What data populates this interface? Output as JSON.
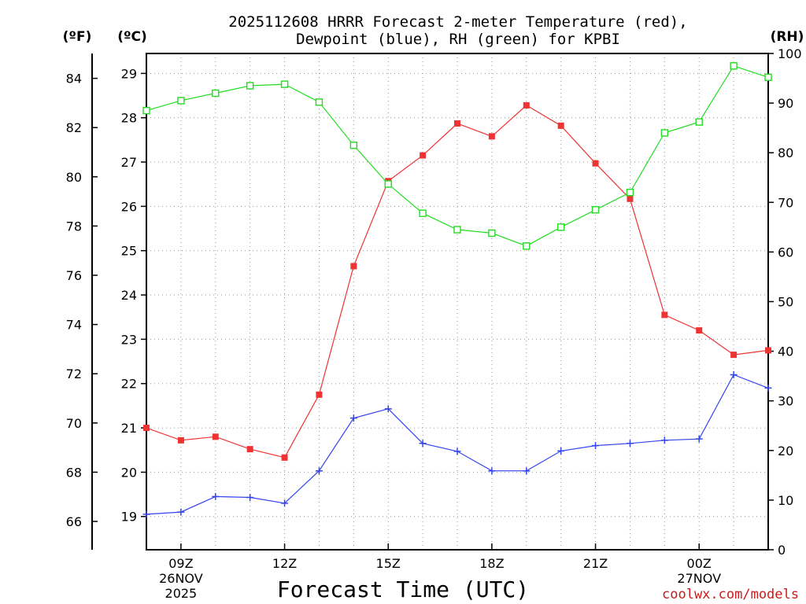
{
  "chart_data": {
    "type": "line",
    "title_line1": "2025112608 HRRR Forecast 2-meter Temperature (red),",
    "title_line2": "Dewpoint (blue), RH (green) for KPBI",
    "xlabel": "Forecast Time (UTC)",
    "credit": "coolwx.com/models",
    "left_outer_unit": "(ºF)",
    "left_inner_unit": "(ºC)",
    "right_unit": "(RH)",
    "celsius_axis": {
      "range": [
        18.25,
        29.45
      ],
      "ticks": [
        19,
        20,
        21,
        22,
        23,
        24,
        25,
        26,
        27,
        28,
        29
      ]
    },
    "fahrenheit_axis": {
      "ticks": [
        66,
        68,
        70,
        72,
        74,
        76,
        78,
        80,
        82,
        84
      ]
    },
    "rh_axis": {
      "range": [
        0,
        100
      ],
      "ticks": [
        0,
        10,
        20,
        30,
        40,
        50,
        60,
        70,
        80,
        90,
        100
      ]
    },
    "x_range": [
      8,
      26
    ],
    "x_ticks": [
      {
        "hour": 9,
        "label": "09Z",
        "sub1": "26NOV",
        "sub2": "2025"
      },
      {
        "hour": 12,
        "label": "12Z",
        "sub1": "",
        "sub2": ""
      },
      {
        "hour": 15,
        "label": "15Z",
        "sub1": "",
        "sub2": ""
      },
      {
        "hour": 18,
        "label": "18Z",
        "sub1": "",
        "sub2": ""
      },
      {
        "hour": 21,
        "label": "21Z",
        "sub1": "",
        "sub2": ""
      },
      {
        "hour": 24,
        "label": "00Z",
        "sub1": "27NOV",
        "sub2": ""
      }
    ],
    "x": [
      8,
      9,
      10,
      11,
      12,
      13,
      14,
      15,
      16,
      17,
      18,
      19,
      20,
      21,
      22,
      23,
      24,
      25,
      26
    ],
    "series": [
      {
        "name": "Temperature",
        "axis": "celsius",
        "color": "#ee3333",
        "marker": "filled-square",
        "values": [
          21.0,
          20.72,
          20.8,
          20.52,
          20.33,
          21.75,
          24.65,
          26.57,
          27.15,
          27.87,
          27.58,
          28.28,
          27.82,
          26.97,
          26.17,
          23.55,
          23.2,
          22.65,
          22.75
        ]
      },
      {
        "name": "Dewpoint",
        "axis": "celsius",
        "color": "#3344ee",
        "marker": "plus",
        "values": [
          19.05,
          19.1,
          19.45,
          19.43,
          19.3,
          20.03,
          21.22,
          21.43,
          20.65,
          20.47,
          20.03,
          20.03,
          20.48,
          20.6,
          20.65,
          20.72,
          20.75,
          22.2,
          21.9
        ]
      },
      {
        "name": "RH",
        "axis": "rh",
        "color": "#22dd22",
        "marker": "open-square",
        "values": [
          88.5,
          90.5,
          92.0,
          93.5,
          93.8,
          90.2,
          81.5,
          73.7,
          67.8,
          64.5,
          63.8,
          61.2,
          65.0,
          68.5,
          72.0,
          84.0,
          86.2,
          97.5,
          95.2
        ]
      }
    ]
  }
}
